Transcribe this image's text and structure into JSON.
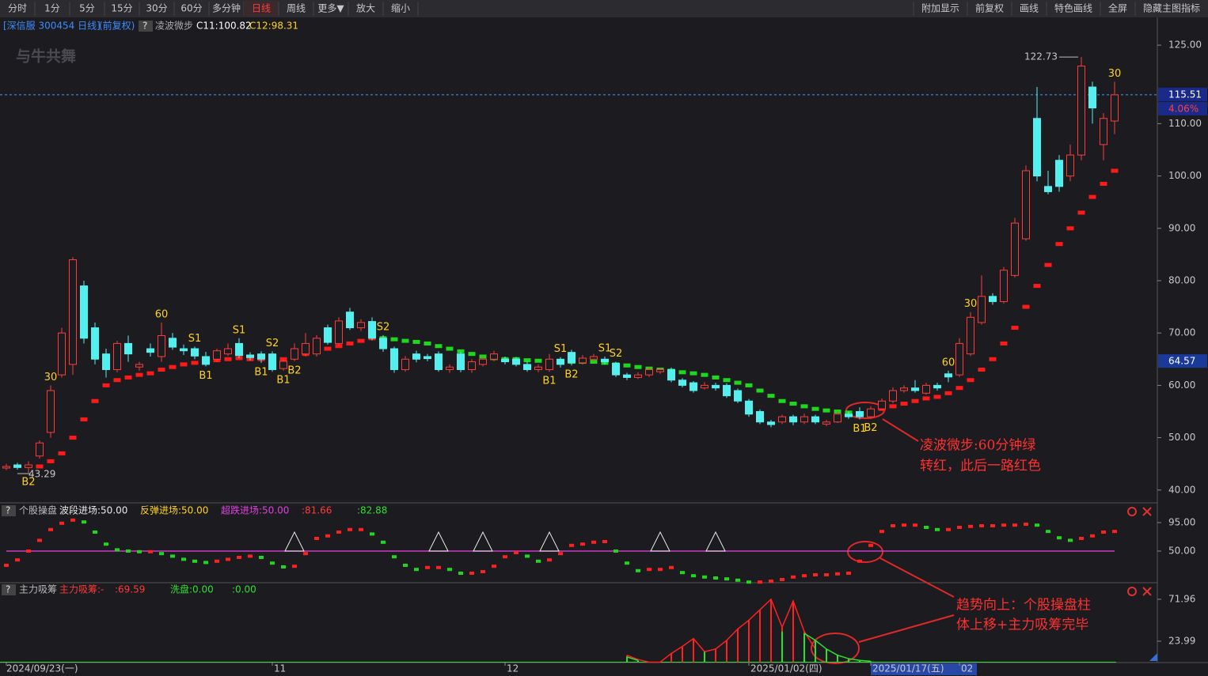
{
  "toolbar": {
    "left": [
      "分时",
      "1分",
      "5分",
      "15分",
      "30分",
      "60分",
      "多分钟",
      "日线",
      "周线",
      "更多▼",
      "放大",
      "缩小"
    ],
    "right": [
      "附加显示",
      "前复权",
      "画线",
      "特色画线",
      "全屏",
      "隐藏主图指标"
    ],
    "active": 7,
    "active_color": "#ff3b3b"
  },
  "info": {
    "symbol": "[深信服 300454 日线]",
    "adjust": "(前复权)",
    "help": "?",
    "indicator": "凌波微步",
    "c11": "C11:100.82",
    "c12": "C12:98.31"
  },
  "watermark": "与牛共舞",
  "annotations": [
    "凌波微步:60分钟绿",
    "转红，此后一路红色",
    "趋势向上：个股操盘柱",
    "体上移+主力吸筹完毕"
  ],
  "chart_data": [
    {
      "type": "candlestick",
      "categories": [
        "2024/09/23(一)",
        null,
        null,
        null,
        null,
        null,
        null,
        null,
        null,
        null,
        null,
        null,
        null,
        null,
        null,
        null,
        null,
        null,
        null,
        null,
        null,
        null,
        null,
        null,
        "11",
        null,
        null,
        null,
        null,
        null,
        null,
        null,
        null,
        null,
        null,
        null,
        null,
        null,
        null,
        null,
        null,
        null,
        null,
        null,
        null,
        "12",
        null,
        null,
        null,
        null,
        null,
        null,
        null,
        null,
        null,
        null,
        null,
        null,
        null,
        null,
        null,
        null,
        null,
        null,
        null,
        null,
        null,
        "2025/01/02(四)",
        null,
        null,
        null,
        null,
        null,
        null,
        null,
        null,
        null,
        null,
        "2025/01/17(五)",
        null,
        null,
        null,
        null,
        null,
        null,
        null,
        "02",
        null,
        null,
        null,
        null,
        null,
        null,
        null,
        null,
        null,
        null,
        null,
        null,
        null,
        null
      ],
      "selected": 78,
      "open": [
        44.2,
        44.8,
        44.3,
        46.5,
        51,
        62,
        64,
        79,
        71,
        66,
        63,
        68,
        63.5,
        67,
        65.5,
        69,
        67,
        67,
        65.5,
        65,
        66,
        68,
        65.8,
        66,
        66,
        63.2,
        65,
        66,
        66,
        71,
        68,
        74,
        71,
        72.2,
        69,
        67,
        63,
        66,
        65.5,
        66,
        63,
        66,
        63,
        64,
        65,
        65,
        65,
        64,
        63,
        63,
        65,
        66.3,
        64.3,
        65,
        65,
        64.2,
        62,
        61.5,
        62,
        62.6,
        63,
        61,
        60.5,
        59.5,
        60,
        60,
        59,
        57,
        55,
        53,
        53,
        54,
        53,
        54,
        52.6,
        53,
        54.5,
        55,
        54,
        55.5,
        57,
        59,
        59.5,
        58.5,
        60,
        62.2,
        62,
        66,
        72,
        77,
        76,
        81,
        88,
        111,
        98,
        103,
        100,
        104,
        117,
        106,
        110.5
      ],
      "high": [
        45,
        45.2,
        45.5,
        49.5,
        60,
        71,
        84.5,
        80,
        72,
        67,
        68.5,
        69.5,
        64.5,
        68,
        72,
        70,
        67.8,
        67.4,
        66.4,
        67,
        68,
        69,
        66.3,
        66.5,
        66.5,
        65,
        68,
        70,
        69.6,
        71.6,
        73,
        74.8,
        72.6,
        73,
        69.6,
        67.4,
        65.6,
        66.6,
        66,
        66.5,
        64,
        66.4,
        65,
        65.5,
        66.6,
        65.5,
        65.4,
        64.5,
        64,
        66,
        65.4,
        66.8,
        65.8,
        66,
        65.5,
        64.5,
        62.4,
        62.5,
        63.4,
        63.4,
        63.4,
        61.4,
        60.8,
        60.6,
        60.5,
        60.4,
        59.4,
        57.4,
        55.4,
        53.4,
        54.4,
        54.4,
        54.6,
        54.4,
        53.4,
        55,
        55,
        55.8,
        56,
        57.5,
        59.6,
        60,
        61,
        60.5,
        60.5,
        62.8,
        69,
        74,
        81,
        77.6,
        82.6,
        92,
        102,
        117,
        101,
        104,
        106,
        122.73,
        118,
        112,
        118
      ],
      "low": [
        43.8,
        43.9,
        43.29,
        46,
        50,
        61.5,
        62,
        68,
        64,
        61.5,
        62.5,
        64.5,
        62.8,
        65.5,
        64.5,
        66.8,
        65.8,
        65,
        63.6,
        64.5,
        65.6,
        65.2,
        64.8,
        64.3,
        62.6,
        62.8,
        64.6,
        65.5,
        65.5,
        67.8,
        67.6,
        70.6,
        70.4,
        68.6,
        66.4,
        62.4,
        62.6,
        64.4,
        64.6,
        62.6,
        62.4,
        62.5,
        62.4,
        63.6,
        64.6,
        64,
        63.6,
        62.6,
        62.5,
        62.6,
        63.4,
        63.8,
        64,
        64.6,
        64,
        61.6,
        61,
        61.2,
        61.6,
        62.2,
        60.6,
        59.6,
        58.6,
        59.2,
        59,
        57.6,
        56.6,
        54,
        52.6,
        52,
        52.6,
        52.4,
        52.6,
        52.6,
        52.2,
        52.8,
        53.6,
        53.5,
        53.6,
        55.2,
        56.6,
        58.6,
        58.6,
        58.2,
        59,
        60.6,
        61.6,
        65.6,
        71.6,
        75.4,
        75.6,
        80.6,
        87.6,
        99,
        96.5,
        97,
        99,
        103,
        110,
        103,
        108
      ],
      "close": [
        44.5,
        44.3,
        44.8,
        49,
        59,
        70,
        84,
        69,
        65,
        63,
        68,
        66,
        64,
        66.3,
        69.5,
        67.3,
        66.6,
        65.6,
        64,
        66.6,
        67,
        65.7,
        65.3,
        65,
        63,
        64.6,
        67,
        68,
        69,
        68.2,
        72.3,
        71,
        72,
        69,
        67,
        63,
        65,
        65,
        65.1,
        63,
        63.5,
        63,
        64.5,
        65,
        66,
        64.5,
        64,
        63,
        63.5,
        65,
        64,
        64.3,
        65.2,
        65.5,
        64.5,
        62,
        61.5,
        62,
        63,
        63,
        61,
        60,
        59,
        60,
        59.5,
        58,
        57,
        54.5,
        53,
        52.5,
        54,
        53,
        54,
        53,
        53,
        54.5,
        54,
        54,
        55.5,
        57,
        59,
        59.5,
        59,
        60,
        59.5,
        61.6,
        68,
        73,
        77,
        76,
        82,
        91,
        101,
        100,
        97,
        98,
        104,
        121,
        113,
        111,
        115.51
      ],
      "up_color": "#ff3a3a",
      "down_color": "#54f0f0",
      "trend_up": [
        null,
        null,
        null,
        44.5,
        45.5,
        47,
        50,
        53.5,
        57,
        60,
        61,
        61.5,
        62,
        62.3,
        63,
        63.5,
        64,
        64.3,
        64.5,
        64.8,
        65,
        65.2,
        65,
        65,
        65,
        65,
        65.5,
        66,
        66.5,
        67,
        67.5,
        68,
        68.5,
        69,
        null,
        null,
        null,
        null,
        null,
        null,
        null,
        null,
        null,
        null,
        null,
        null,
        null,
        null,
        null,
        null,
        null,
        null,
        null,
        null,
        null,
        null,
        null,
        null,
        null,
        null,
        null,
        null,
        null,
        null,
        null,
        null,
        null,
        null,
        null,
        null,
        null,
        null,
        null,
        null,
        null,
        null,
        null,
        null,
        55,
        55.5,
        56,
        56.5,
        57,
        57.5,
        57.8,
        58.5,
        59.5,
        61,
        63,
        65,
        68,
        71,
        75,
        79,
        83,
        87,
        90,
        93,
        96,
        98.5,
        101
      ],
      "trend_down": [
        null,
        null,
        null,
        null,
        null,
        null,
        null,
        null,
        null,
        null,
        null,
        null,
        null,
        null,
        null,
        null,
        null,
        null,
        null,
        null,
        null,
        null,
        null,
        null,
        null,
        null,
        null,
        null,
        null,
        null,
        null,
        null,
        null,
        null,
        69,
        68.8,
        68.5,
        68.3,
        68,
        67.5,
        67,
        66.5,
        66,
        65.5,
        65.2,
        65,
        65,
        64.8,
        64.7,
        64.6,
        64.5,
        64.5,
        64.5,
        64.5,
        64.3,
        64,
        63.8,
        63.5,
        63.2,
        63,
        62.8,
        62.5,
        62.3,
        62,
        61.5,
        61,
        60.5,
        60,
        59,
        58,
        57,
        56.5,
        56,
        55.5,
        55.2,
        55,
        54.8,
        54.6,
        null,
        null,
        null,
        null,
        null,
        null,
        null,
        null,
        null,
        null,
        null,
        null,
        null,
        null,
        null,
        null,
        null,
        null,
        null,
        null,
        null,
        null,
        null
      ],
      "trend_up_color": "#ff1a1a",
      "trend_down_color": "#1ed81e",
      "signals": [
        {
          "text": "B2",
          "x": 2,
          "pos": "below"
        },
        {
          "text": "30",
          "x": 4,
          "pos": "above"
        },
        {
          "text": "60",
          "x": 14,
          "pos": "above"
        },
        {
          "text": "S1",
          "x": 17,
          "pos": "above"
        },
        {
          "text": "B1",
          "x": 18,
          "pos": "below"
        },
        {
          "text": "S1",
          "x": 21,
          "pos": "above"
        },
        {
          "text": "B1",
          "x": 23,
          "pos": "below"
        },
        {
          "text": "S2",
          "x": 24,
          "pos": "above"
        },
        {
          "text": "B1",
          "x": 25,
          "pos": "below"
        },
        {
          "text": "B2",
          "x": 26,
          "pos": "below"
        },
        {
          "text": "S2",
          "x": 34,
          "pos": "above"
        },
        {
          "text": "B1",
          "x": 49,
          "pos": "below"
        },
        {
          "text": "S1",
          "x": 50,
          "pos": "above"
        },
        {
          "text": "B2",
          "x": 51,
          "pos": "below"
        },
        {
          "text": "S1",
          "x": 54,
          "pos": "above"
        },
        {
          "text": "S2",
          "x": 55,
          "pos": "above"
        },
        {
          "text": "B1",
          "x": 77,
          "pos": "below"
        },
        {
          "text": "B2",
          "x": 78,
          "pos": "below"
        },
        {
          "text": "60",
          "x": 85,
          "pos": "above"
        },
        {
          "text": "30",
          "x": 87,
          "pos": "above"
        },
        {
          "text": "30",
          "x": 100,
          "pos": "above"
        }
      ],
      "signal_color": "#ffd21e",
      "last_price": 115.51,
      "change": {
        "value": 4.06,
        "label": "4.06%"
      },
      "cursor_price": 64.57,
      "ylim": [
        37.7,
        130.3
      ],
      "yticks": [
        {
          "value": 125,
          "label": "125.00"
        },
        {
          "value": 110,
          "label": "110.00"
        },
        {
          "value": 100,
          "label": "100.00"
        },
        {
          "value": 90,
          "label": "90.00"
        },
        {
          "value": 80,
          "label": "80.00"
        },
        {
          "value": 70,
          "label": "70.00"
        },
        {
          "value": 60,
          "label": "60.00"
        },
        {
          "value": 50,
          "label": "50.00"
        },
        {
          "value": 40,
          "label": "40.00"
        }
      ]
    },
    {
      "type": "dash",
      "help": "?",
      "title": "个股操盘",
      "legend": [
        {
          "text": "波段进场:50.00",
          "color": "#e8e8e8"
        },
        {
          "text": "反弹进场:50.00",
          "color": "#ffd21e"
        },
        {
          "text": "超跌进场:50.00",
          "color": "#e040e0"
        },
        {
          "text": ":81.66",
          "color": "#ff3a3a"
        },
        {
          "text": ":82.88",
          "color": "#2ee02e"
        }
      ],
      "values": [
        27.5,
        36,
        50,
        67,
        84,
        94,
        99,
        96,
        80,
        61,
        52,
        50,
        49,
        49,
        46,
        42,
        37,
        34,
        32,
        34,
        37,
        40,
        42,
        40,
        31,
        25,
        26,
        46,
        70,
        74,
        80,
        84,
        84,
        77,
        64,
        41,
        27.5,
        21,
        24,
        24,
        21,
        15,
        15,
        17.5,
        26,
        41,
        47.5,
        42,
        34,
        36,
        46,
        59,
        61,
        64,
        65,
        50,
        31,
        19,
        21,
        21,
        24,
        16,
        11,
        9,
        7.5,
        6,
        4,
        1,
        1,
        2.5,
        5,
        9,
        11,
        12.5,
        12.5,
        14,
        15,
        34,
        59,
        81,
        90,
        91,
        91,
        87.5,
        84,
        84,
        87.5,
        89,
        90,
        90,
        91,
        91,
        92.5,
        91,
        81,
        71,
        67,
        70,
        74,
        80,
        81
      ],
      "up_color": "#ff2020",
      "down_color": "#1ed81e",
      "threshold": 50,
      "threshold_color": "#c83cc8",
      "signal_x": [
        26,
        39,
        43,
        49,
        59,
        64
      ],
      "ylim": [
        0,
        125
      ],
      "yticks": [
        {
          "value": 95,
          "label": "95.00"
        },
        {
          "value": 50,
          "label": "50.00"
        }
      ]
    },
    {
      "type": "stick",
      "help": "?",
      "title": "主力吸筹",
      "legend": [
        {
          "text": "主力吸筹:-",
          "color": "#ff3a3a"
        },
        {
          "text": ":69.59",
          "color": "#ff3a3a"
        },
        {
          "text": "洗盘:0.00",
          "color": "#2ee02e"
        },
        {
          "text": ":0.00",
          "color": "#2ee02e"
        }
      ],
      "series": [
        {
          "color": "#ff2020",
          "values": [
            null,
            null,
            null,
            null,
            null,
            null,
            null,
            null,
            null,
            null,
            null,
            null,
            null,
            null,
            null,
            null,
            null,
            null,
            null,
            null,
            null,
            null,
            null,
            null,
            null,
            null,
            null,
            null,
            null,
            null,
            null,
            null,
            null,
            null,
            null,
            null,
            null,
            null,
            null,
            null,
            null,
            null,
            null,
            null,
            null,
            null,
            null,
            null,
            null,
            null,
            null,
            null,
            null,
            null,
            null,
            null,
            8,
            3,
            0,
            0,
            10,
            18,
            27,
            12,
            15,
            25,
            38,
            48,
            60,
            72,
            40,
            70,
            35,
            15,
            null,
            null,
            null,
            null,
            null,
            null,
            null,
            null,
            null,
            null,
            null,
            null,
            null,
            null,
            null,
            null,
            null,
            null,
            null,
            null,
            null,
            null,
            null,
            null,
            null,
            null,
            null
          ]
        },
        {
          "color": "#2ee02e",
          "values": [
            null,
            null,
            null,
            null,
            null,
            null,
            null,
            null,
            null,
            null,
            null,
            null,
            null,
            null,
            null,
            null,
            null,
            null,
            null,
            null,
            null,
            null,
            null,
            null,
            null,
            null,
            null,
            null,
            null,
            null,
            null,
            null,
            null,
            null,
            null,
            null,
            null,
            null,
            null,
            null,
            null,
            null,
            null,
            null,
            null,
            null,
            null,
            null,
            null,
            null,
            null,
            null,
            null,
            null,
            null,
            null,
            6,
            2,
            null,
            null,
            null,
            null,
            null,
            12,
            null,
            null,
            null,
            null,
            null,
            null,
            35,
            null,
            33,
            25,
            15,
            8,
            4,
            2,
            1,
            null,
            null,
            null,
            null,
            null,
            null,
            null,
            null,
            null,
            null,
            null,
            null,
            null,
            null,
            null,
            null,
            null,
            null,
            null,
            null,
            null,
            null,
            null
          ]
        }
      ],
      "ylim": [
        0,
        90
      ],
      "yticks": [
        71.96,
        23.99
      ]
    }
  ]
}
